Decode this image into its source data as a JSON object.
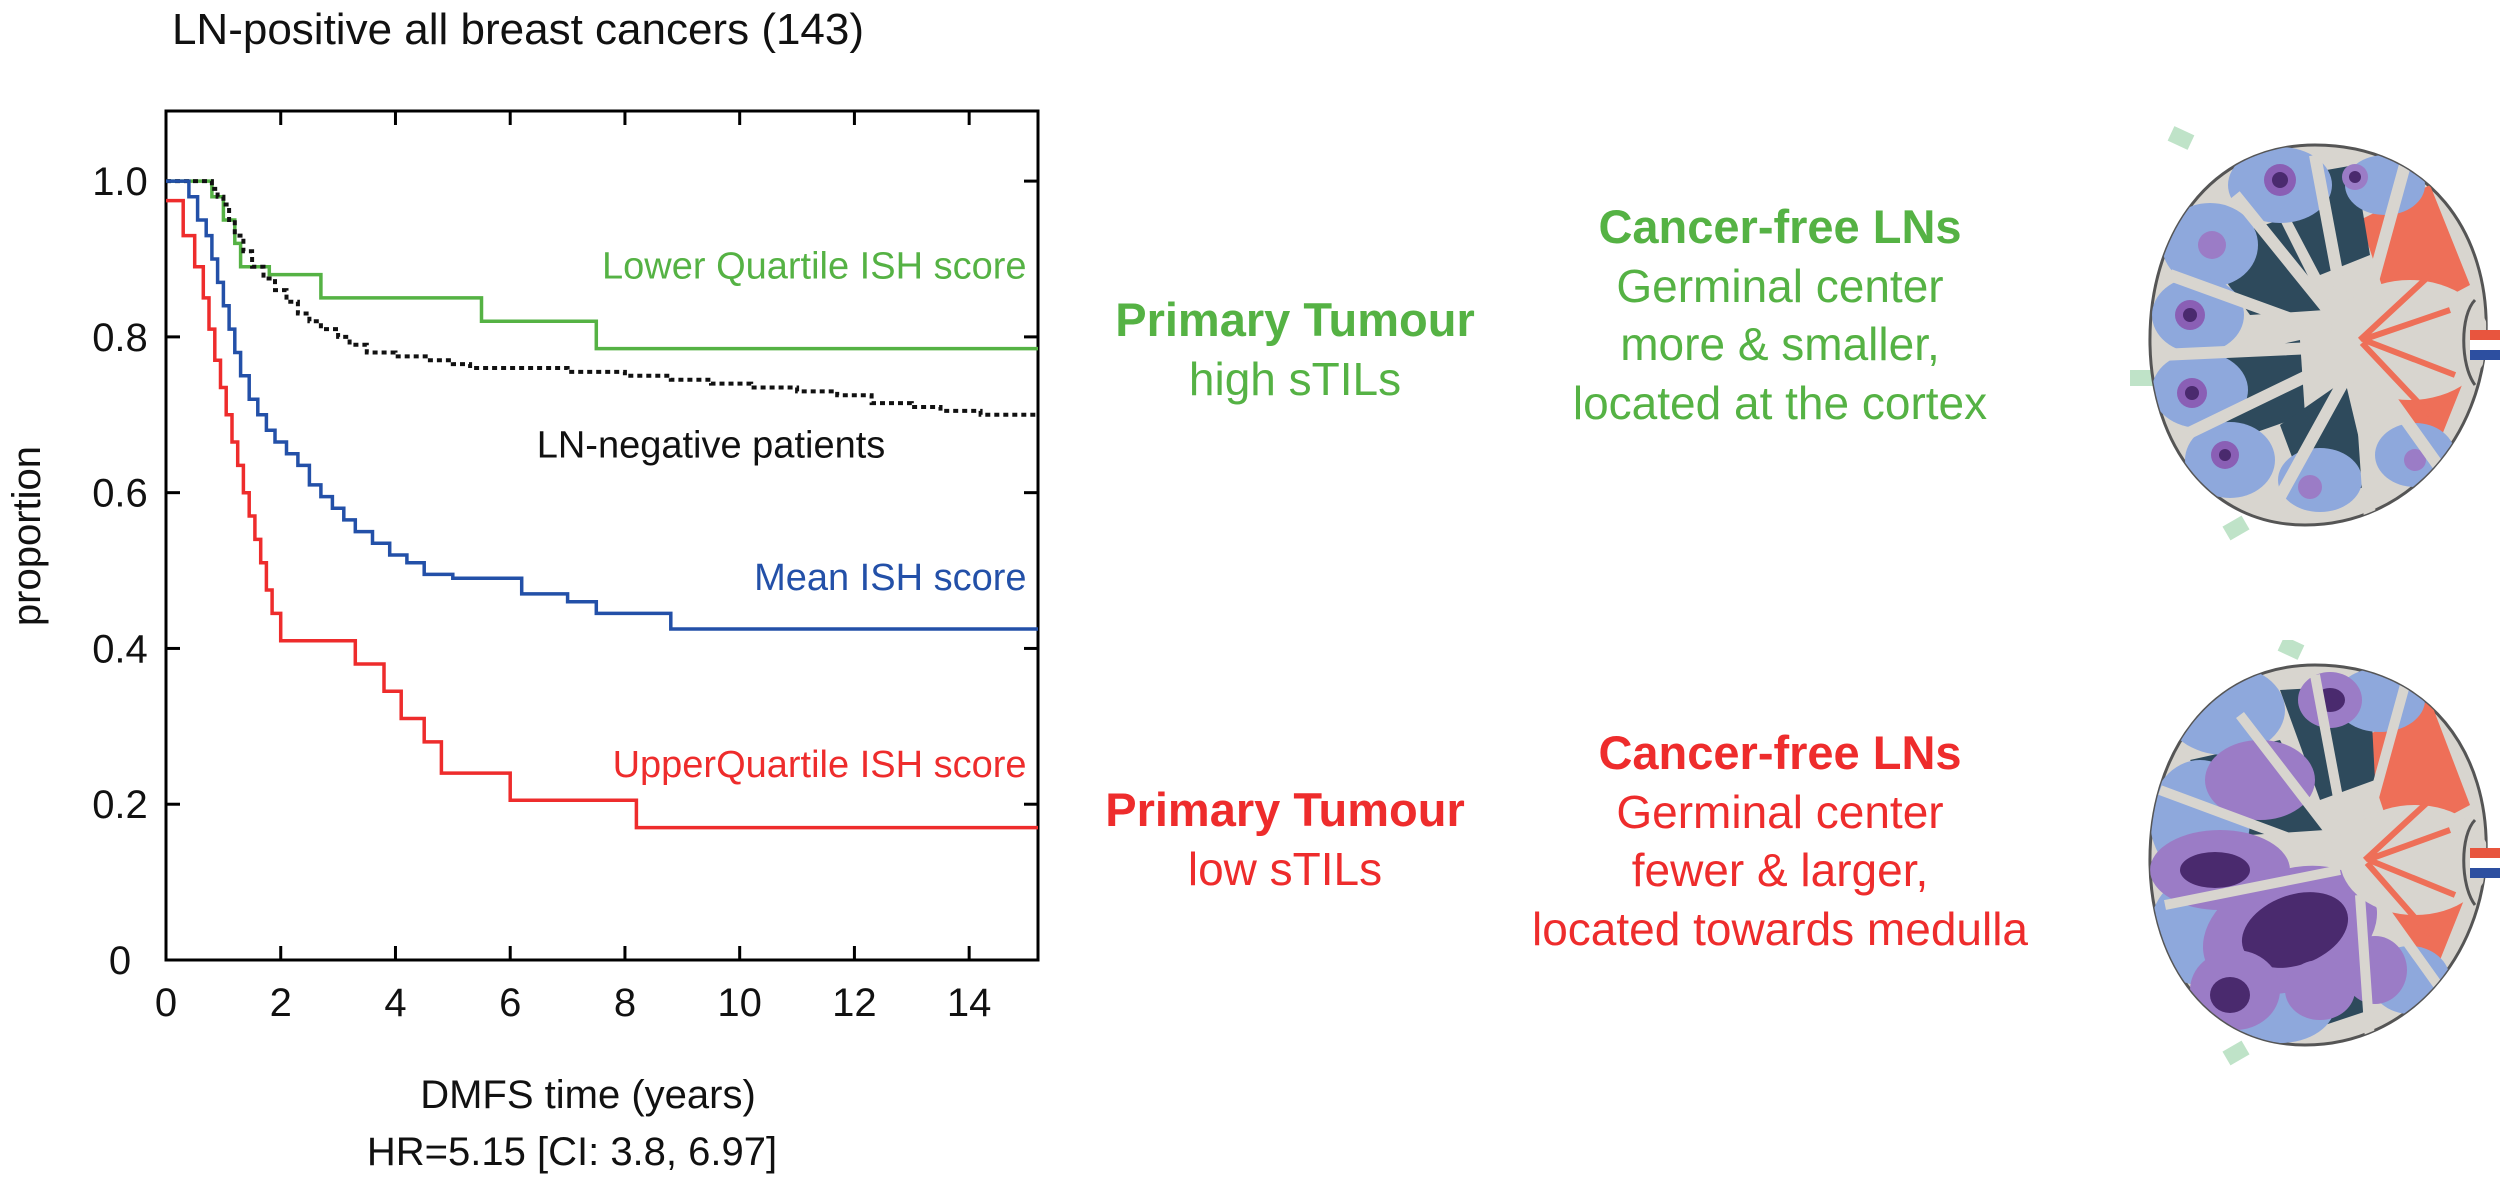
{
  "colors": {
    "green": "#55b244",
    "blue": "#2350a8",
    "red": "#ee2c2c",
    "black": "#111111"
  },
  "chart_data": {
    "type": "line",
    "title": "LN-positive all breast cancers (143)",
    "xlabel": "DMFS time (years)",
    "ylabel": "proportion",
    "footnote": "HR=5.15 [CI: 3.8, 6.97]",
    "xlim": [
      0,
      15.2
    ],
    "ylim": [
      0,
      1.09
    ],
    "xticks": [
      0,
      2,
      4,
      6,
      8,
      10,
      12,
      14
    ],
    "xtick_labels": [
      "0",
      "2",
      "4",
      "6",
      "8",
      "10",
      "12",
      "14"
    ],
    "yticks": [
      0,
      0.2,
      0.4,
      0.6,
      0.8,
      1.0
    ],
    "ytick_labels": [
      "0",
      "0.2",
      "0.4",
      "0.6",
      "0.8",
      "1.0"
    ],
    "step": true,
    "series": [
      {
        "name": "Lower Quartile ISH score",
        "color": "#55b244",
        "dash": false,
        "points": [
          [
            0,
            1.0
          ],
          [
            0.7,
            1.0
          ],
          [
            0.8,
            0.98
          ],
          [
            1.0,
            0.95
          ],
          [
            1.2,
            0.92
          ],
          [
            1.3,
            0.89
          ],
          [
            1.8,
            0.88
          ],
          [
            2.7,
            0.85
          ],
          [
            5.5,
            0.82
          ],
          [
            7.5,
            0.785
          ],
          [
            15.2,
            0.785
          ]
        ]
      },
      {
        "name": "LN-negative patients",
        "color": "#111111",
        "dash": true,
        "points": [
          [
            0,
            1.0
          ],
          [
            0.8,
            0.99
          ],
          [
            0.9,
            0.98
          ],
          [
            1.0,
            0.97
          ],
          [
            1.1,
            0.95
          ],
          [
            1.2,
            0.93
          ],
          [
            1.35,
            0.91
          ],
          [
            1.5,
            0.89
          ],
          [
            1.7,
            0.875
          ],
          [
            1.9,
            0.86
          ],
          [
            2.1,
            0.845
          ],
          [
            2.3,
            0.83
          ],
          [
            2.5,
            0.82
          ],
          [
            2.7,
            0.81
          ],
          [
            3.0,
            0.8
          ],
          [
            3.2,
            0.79
          ],
          [
            3.5,
            0.78
          ],
          [
            4.0,
            0.775
          ],
          [
            4.6,
            0.77
          ],
          [
            5.0,
            0.765
          ],
          [
            5.3,
            0.76
          ],
          [
            6.0,
            0.76
          ],
          [
            7.0,
            0.755
          ],
          [
            8.0,
            0.75
          ],
          [
            8.8,
            0.745
          ],
          [
            9.5,
            0.74
          ],
          [
            10.2,
            0.735
          ],
          [
            11.0,
            0.73
          ],
          [
            11.7,
            0.725
          ],
          [
            12.3,
            0.715
          ],
          [
            13.0,
            0.71
          ],
          [
            13.5,
            0.705
          ],
          [
            14.2,
            0.7
          ],
          [
            15.2,
            0.7
          ]
        ]
      },
      {
        "name": "Mean ISH score",
        "color": "#2350a8",
        "dash": false,
        "points": [
          [
            0,
            1.0
          ],
          [
            0.4,
            0.98
          ],
          [
            0.55,
            0.95
          ],
          [
            0.7,
            0.93
          ],
          [
            0.8,
            0.9
          ],
          [
            0.9,
            0.87
          ],
          [
            1.0,
            0.84
          ],
          [
            1.1,
            0.81
          ],
          [
            1.2,
            0.78
          ],
          [
            1.3,
            0.75
          ],
          [
            1.45,
            0.72
          ],
          [
            1.6,
            0.7
          ],
          [
            1.75,
            0.68
          ],
          [
            1.9,
            0.665
          ],
          [
            2.1,
            0.65
          ],
          [
            2.3,
            0.635
          ],
          [
            2.5,
            0.61
          ],
          [
            2.7,
            0.595
          ],
          [
            2.9,
            0.58
          ],
          [
            3.1,
            0.565
          ],
          [
            3.3,
            0.55
          ],
          [
            3.6,
            0.535
          ],
          [
            3.9,
            0.52
          ],
          [
            4.2,
            0.51
          ],
          [
            4.5,
            0.495
          ],
          [
            5.0,
            0.49
          ],
          [
            6.2,
            0.47
          ],
          [
            7.0,
            0.46
          ],
          [
            7.5,
            0.445
          ],
          [
            8.8,
            0.425
          ],
          [
            15.2,
            0.425
          ]
        ]
      },
      {
        "name": "UpperQuartile ISH score",
        "color": "#ee2c2c",
        "dash": false,
        "points": [
          [
            0,
            0.975
          ],
          [
            0.3,
            0.93
          ],
          [
            0.5,
            0.89
          ],
          [
            0.65,
            0.85
          ],
          [
            0.75,
            0.81
          ],
          [
            0.85,
            0.77
          ],
          [
            0.95,
            0.735
          ],
          [
            1.05,
            0.7
          ],
          [
            1.15,
            0.665
          ],
          [
            1.25,
            0.635
          ],
          [
            1.35,
            0.6
          ],
          [
            1.45,
            0.57
          ],
          [
            1.55,
            0.54
          ],
          [
            1.65,
            0.51
          ],
          [
            1.75,
            0.475
          ],
          [
            1.85,
            0.445
          ],
          [
            2.0,
            0.41
          ],
          [
            3.3,
            0.38
          ],
          [
            3.8,
            0.345
          ],
          [
            4.1,
            0.31
          ],
          [
            4.5,
            0.28
          ],
          [
            4.8,
            0.24
          ],
          [
            6.0,
            0.205
          ],
          [
            8.2,
            0.17
          ],
          [
            15.2,
            0.17
          ]
        ]
      }
    ],
    "series_labels": [
      {
        "text": "Lower Quartile ISH score",
        "color": "#55b244",
        "anchor": "end",
        "x": 15.0,
        "y": 0.875
      },
      {
        "text": "LN-negative patients",
        "color": "#111111",
        "anchor": "middle",
        "x": 9.5,
        "y": 0.645
      },
      {
        "text": "Mean ISH score",
        "color": "#2350a8",
        "anchor": "end",
        "x": 15.0,
        "y": 0.475
      },
      {
        "text": "UpperQuartile ISH score",
        "color": "#ee2c2c",
        "anchor": "end",
        "x": 15.0,
        "y": 0.235
      }
    ]
  },
  "panels": {
    "top": {
      "tumour_title": "Primary Tumour",
      "tumour_desc": "high sTILs",
      "ln_title": "Cancer-free LNs",
      "ln_lines": [
        "Germinal center",
        "more & smaller,",
        "located at the cortex"
      ]
    },
    "bottom": {
      "tumour_title": "Primary Tumour",
      "tumour_desc": "low sTILs",
      "ln_title": "Cancer-free LNs",
      "ln_lines": [
        "Germinal center",
        "fewer & larger,",
        "located towards medulla"
      ]
    }
  }
}
